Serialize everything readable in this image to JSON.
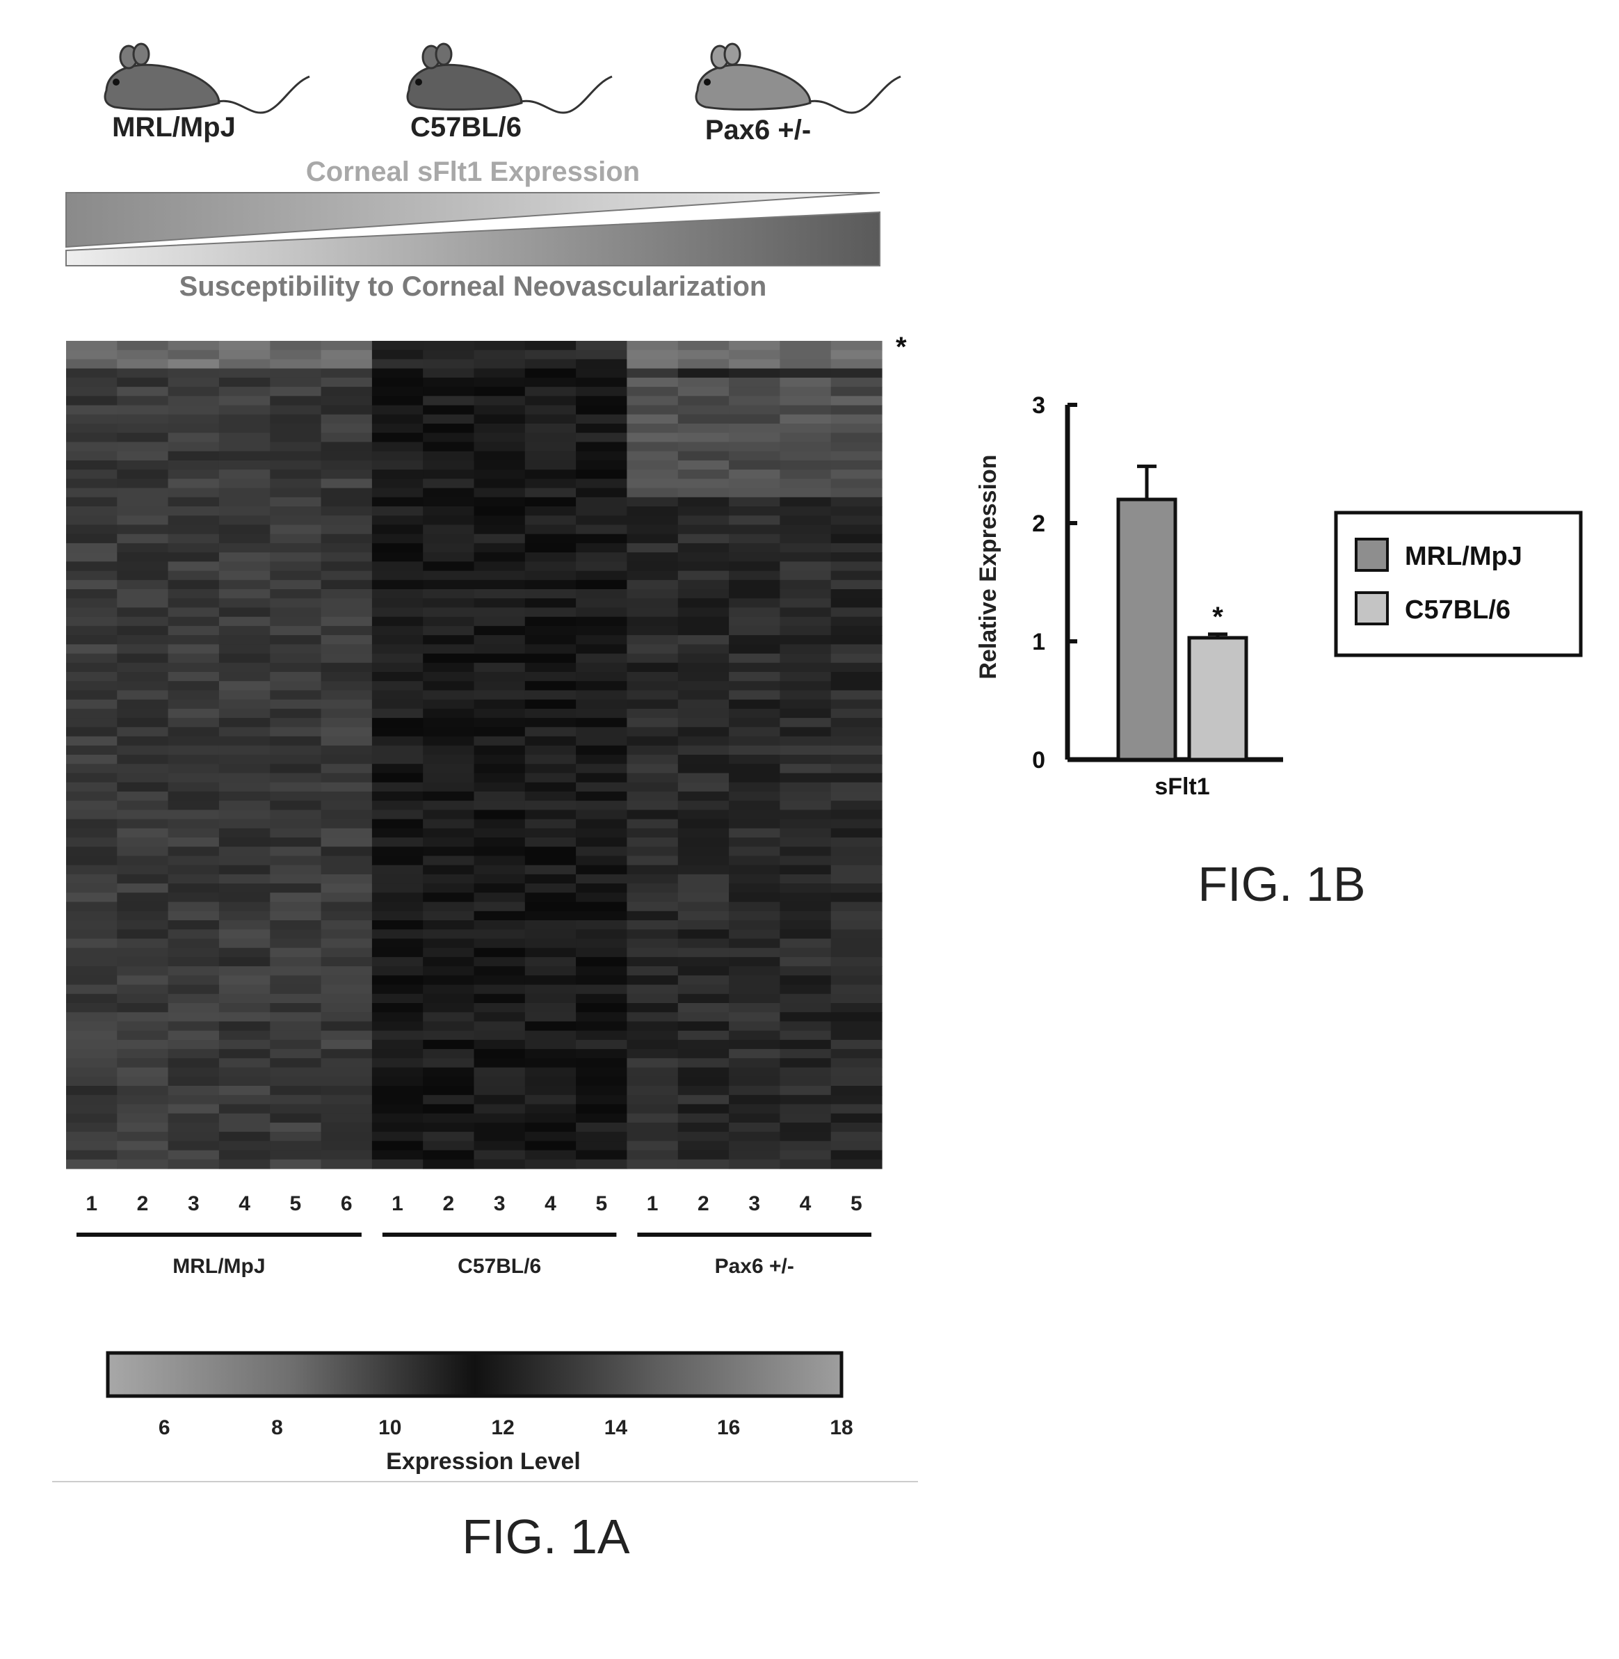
{
  "fig1a": {
    "strains": [
      {
        "label": "MRL/MpJ",
        "icon": "mouse-icon",
        "color": "#6a6a6a"
      },
      {
        "label": "C57BL/6",
        "icon": "mouse-icon",
        "color": "#5e5e5e"
      },
      {
        "label": "Pax6 +/-",
        "icon": "mouse-icon",
        "color": "#8f8f8f"
      }
    ],
    "trend_top": "Corneal sFlt1 Expression",
    "trend_bottom": "Susceptibility to Corneal Neovascularization",
    "asterisk": "*",
    "caption": "FIG. 1A"
  },
  "fig1b": {
    "caption": "FIG. 1B",
    "legend": [
      {
        "label": "MRL/MpJ",
        "color": "#8e8e8e"
      },
      {
        "label": "C57BL/6",
        "color": "#c4c4c4"
      }
    ]
  },
  "chart_data": [
    {
      "type": "heatmap",
      "title": "",
      "groups": [
        {
          "name": "MRL/MpJ",
          "columns": [
            "1",
            "2",
            "3",
            "4",
            "5",
            "6"
          ]
        },
        {
          "name": "C57BL/6",
          "columns": [
            "1",
            "2",
            "3",
            "4",
            "5"
          ]
        },
        {
          "name": "Pax6 +/-",
          "columns": [
            "1",
            "2",
            "3",
            "4",
            "5"
          ]
        }
      ],
      "colorbar": {
        "label": "Expression Level",
        "ticks": [
          "6",
          "8",
          "10",
          "12",
          "14",
          "16",
          "18"
        ],
        "range": [
          5,
          18
        ]
      },
      "row_marker": "*"
    },
    {
      "type": "bar",
      "categories": [
        "sFlt1"
      ],
      "series": [
        {
          "name": "MRL/MpJ",
          "values": [
            2.2
          ],
          "error": [
            0.28
          ]
        },
        {
          "name": "C57BL/6",
          "values": [
            1.03
          ],
          "error": [
            0.03
          ]
        }
      ],
      "significance": "*",
      "ylabel": "Relative Expression",
      "xlabel": "",
      "ylim": [
        0,
        3
      ],
      "yticks": [
        "0",
        "1",
        "2",
        "3"
      ]
    }
  ]
}
